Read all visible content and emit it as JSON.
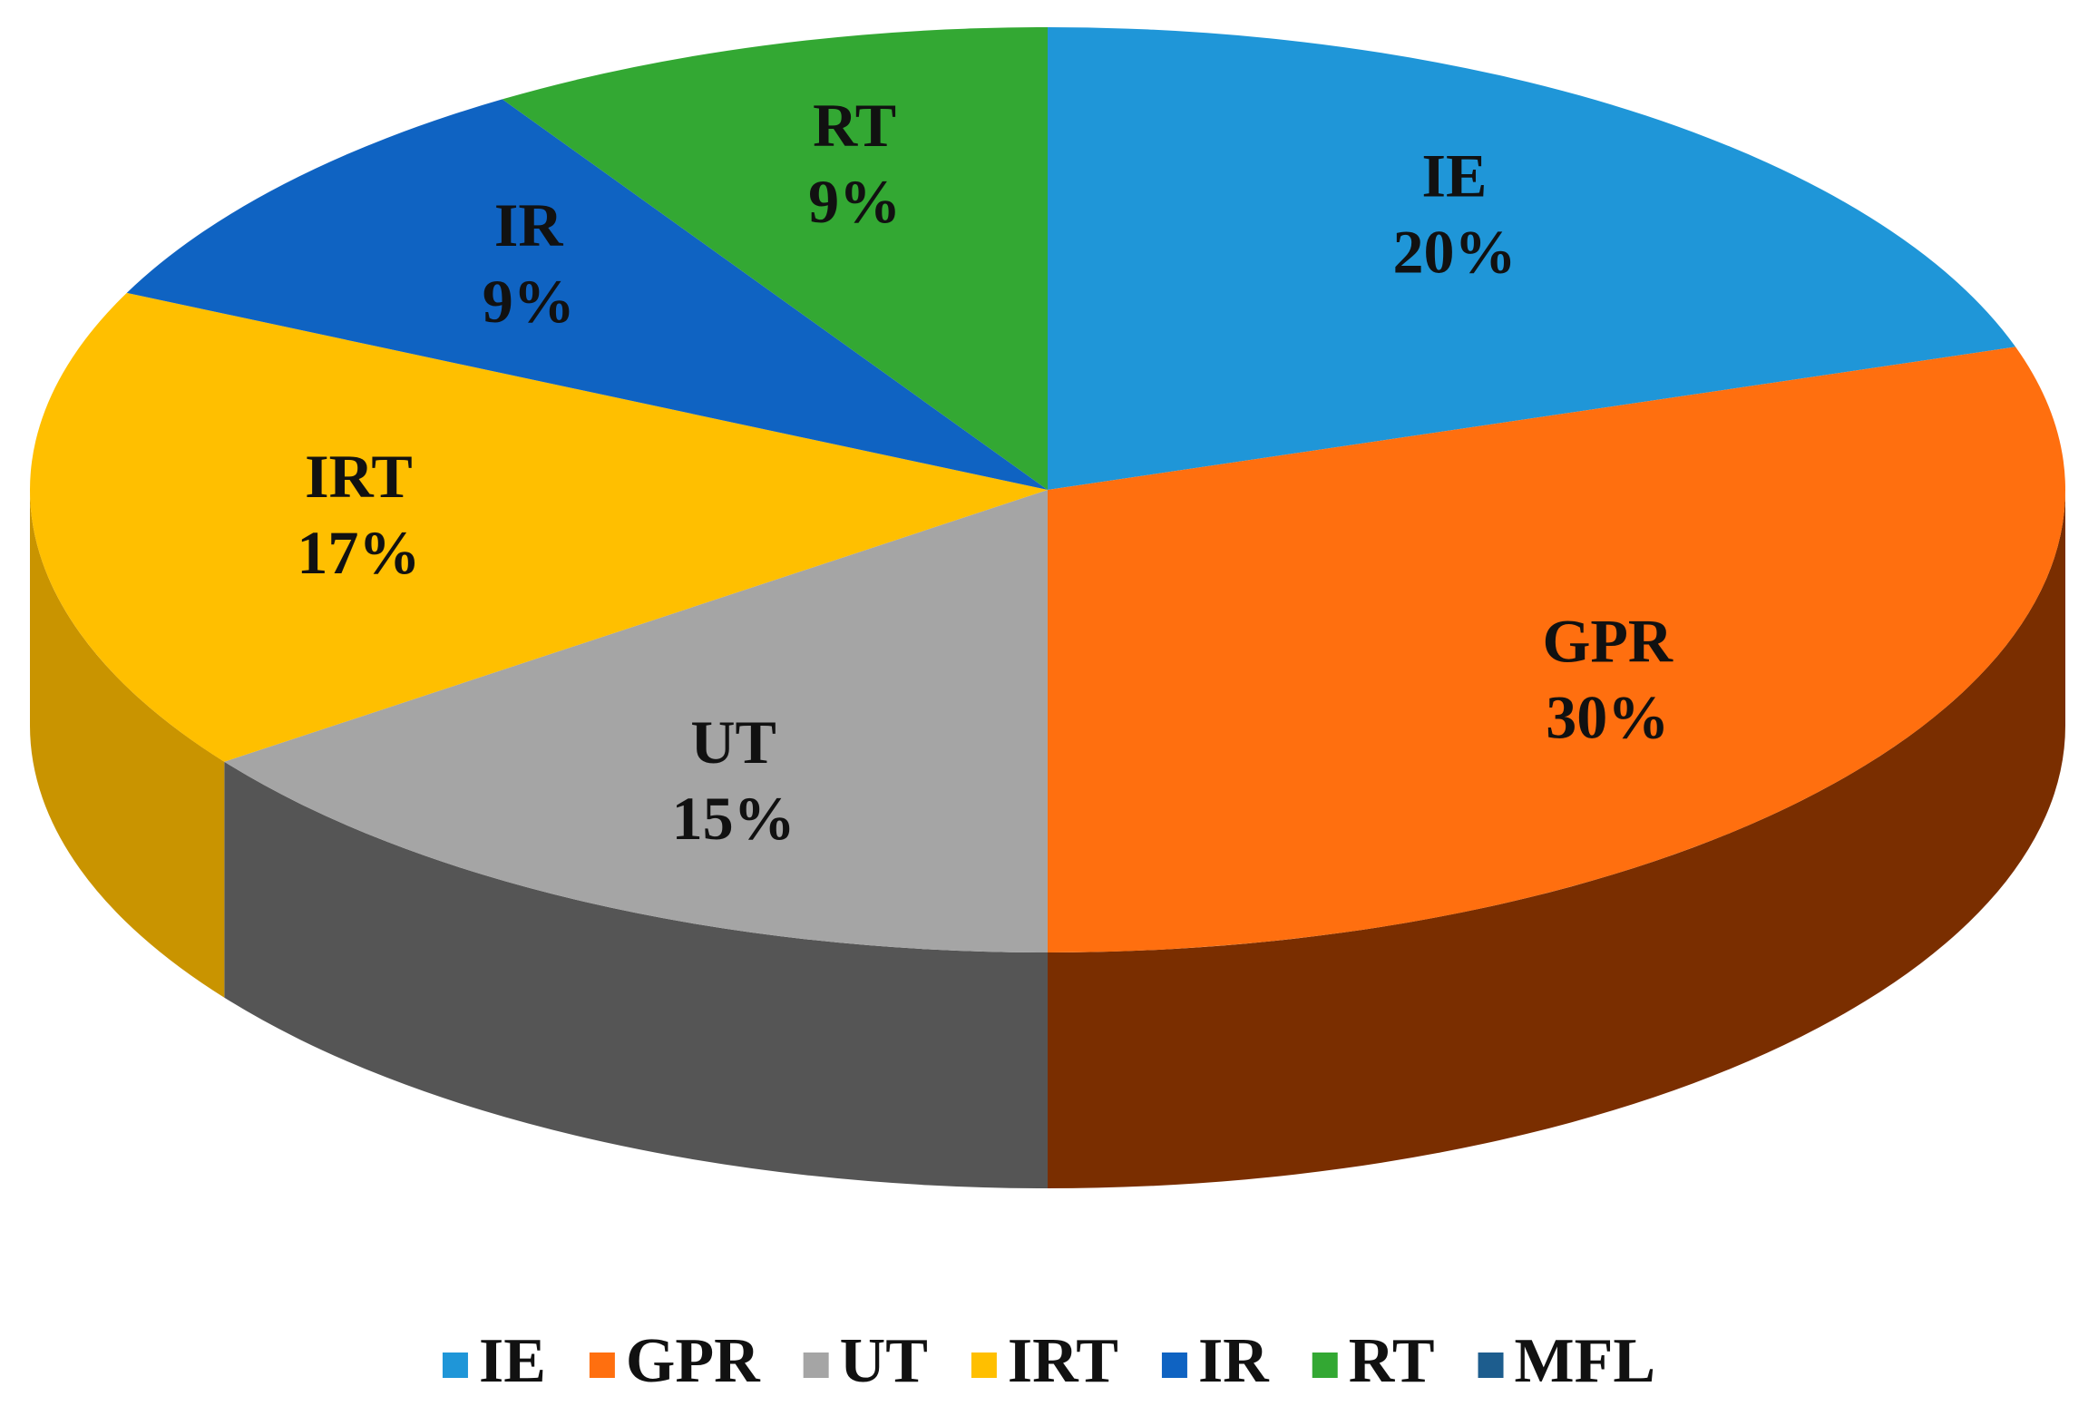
{
  "chart_data": {
    "type": "pie",
    "categories": [
      "IE",
      "GPR",
      "UT",
      "IRT",
      "IR",
      "RT",
      "MFL"
    ],
    "values": [
      20,
      30,
      15,
      17,
      9,
      9,
      0
    ],
    "value_labels": [
      "20%",
      "30%",
      "15%",
      "17%",
      "9%",
      "9%",
      null
    ],
    "colors": [
      "#1f96d8",
      "#ff6f0f",
      "#a5a5a5",
      "#ffbf00",
      "#0f63c2",
      "#33a833",
      "#1d5d8e"
    ],
    "side_colors": [
      "#0f5f8c",
      "#7a2e00",
      "#555555",
      "#c99400",
      "#0a3f80",
      "#1f6e1f",
      "#123c5c"
    ],
    "legend": "bottom"
  }
}
